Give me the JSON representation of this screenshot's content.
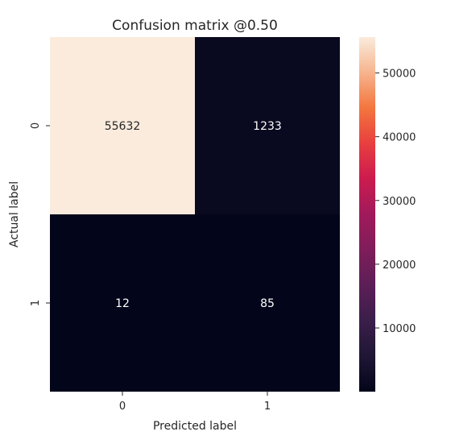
{
  "chart_data": {
    "type": "heatmap",
    "title": "Confusion matrix @0.50",
    "xlabel": "Predicted label",
    "ylabel": "Actual label",
    "x_categories": [
      "0",
      "1"
    ],
    "y_categories": [
      "0",
      "1"
    ],
    "values": [
      [
        55632,
        1233
      ],
      [
        12,
        85
      ]
    ],
    "colorbar": {
      "ticks": [
        10000,
        20000,
        30000,
        40000,
        50000
      ],
      "tick_labels": [
        "10000",
        "20000",
        "30000",
        "40000",
        "50000"
      ],
      "range": [
        12,
        55632
      ],
      "colormap": "rocket"
    },
    "colors": {
      "high": "#faebdd",
      "low": "#03051a",
      "label_on_dark": "#ffffff",
      "label_on_light": "#262626"
    }
  }
}
